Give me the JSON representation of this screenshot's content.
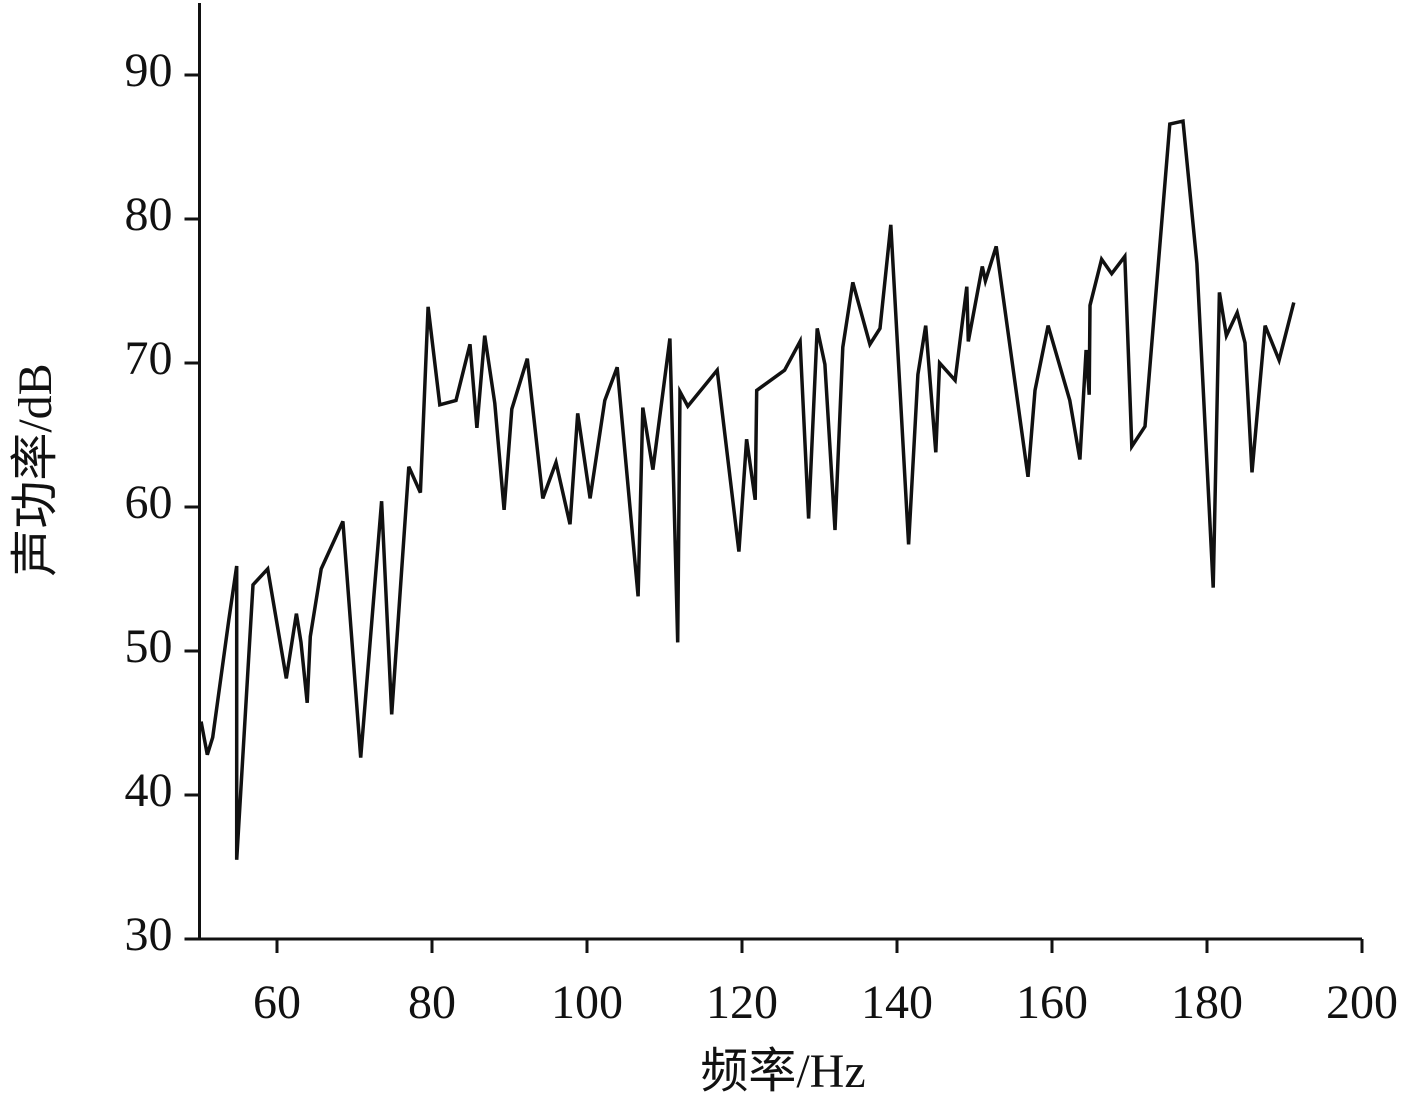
{
  "chart_data": {
    "type": "line",
    "x_label": "频率/Hz",
    "y_label": "声功率/dB",
    "xlim": [
      50,
      200
    ],
    "ylim": [
      30,
      95
    ],
    "xticks": [
      60,
      80,
      100,
      120,
      140,
      160,
      180,
      200
    ],
    "yticks": [
      30,
      40,
      50,
      60,
      70,
      80,
      90
    ],
    "series": [
      {
        "color": "#111111",
        "x": [
          50.2,
          51.0,
          51.7,
          53.8,
          54.8,
          54.8,
          56.9,
          58.8,
          61.2,
          62.5,
          63.1,
          63.9,
          64.3,
          65.7,
          68.5,
          70.8,
          73.5,
          74.8,
          77.0,
          78.5,
          79.5,
          81.0,
          83.1,
          84.9,
          85.8,
          86.8,
          88.1,
          89.3,
          90.3,
          92.3,
          94.3,
          96.0,
          97.8,
          98.8,
          100.4,
          102.3,
          103.9,
          106.6,
          107.2,
          108.5,
          110.7,
          111.7,
          112.0,
          113.0,
          116.8,
          119.6,
          120.6,
          121.7,
          121.9,
          125.5,
          127.5,
          128.6,
          129.7,
          130.7,
          132.0,
          133.0,
          134.3,
          136.5,
          137.8,
          139.2,
          141.5,
          142.7,
          143.7,
          145.0,
          145.5,
          147.5,
          149.0,
          149.2,
          151.0,
          151.4,
          152.8,
          156.9,
          157.8,
          159.5,
          162.3,
          163.6,
          164.4,
          164.8,
          164.9,
          166.4,
          167.7,
          169.4,
          170.3,
          172.0,
          175.2,
          176.9,
          178.7,
          180.8,
          181.6,
          182.5,
          183.9,
          184.9,
          185.8,
          187.5,
          189.3,
          191.2
        ],
        "values": [
          45.1,
          42.8,
          44.0,
          52.2,
          55.9,
          35.5,
          54.6,
          55.7,
          48.1,
          52.6,
          50.6,
          46.4,
          51.0,
          55.7,
          59.0,
          42.6,
          60.4,
          45.6,
          62.8,
          61.0,
          73.9,
          67.1,
          67.4,
          71.3,
          65.5,
          71.9,
          67.2,
          59.8,
          66.8,
          70.3,
          60.6,
          63.1,
          58.8,
          66.5,
          60.6,
          67.4,
          69.7,
          53.8,
          66.9,
          62.6,
          71.7,
          50.6,
          68.0,
          67.0,
          69.5,
          56.9,
          64.7,
          60.5,
          68.1,
          69.5,
          71.5,
          59.2,
          72.4,
          69.9,
          58.4,
          71.1,
          75.6,
          71.3,
          72.4,
          79.6,
          57.4,
          69.2,
          72.6,
          63.8,
          70.0,
          68.8,
          75.3,
          71.5,
          76.7,
          75.7,
          78.1,
          62.1,
          68.1,
          72.6,
          67.4,
          63.3,
          70.9,
          67.8,
          74.0,
          77.2,
          76.2,
          77.4,
          64.2,
          65.6,
          86.6,
          86.8,
          76.9,
          54.4,
          74.9,
          71.9,
          73.5,
          71.4,
          62.4,
          72.6,
          70.2,
          74.2
        ]
      }
    ]
  }
}
